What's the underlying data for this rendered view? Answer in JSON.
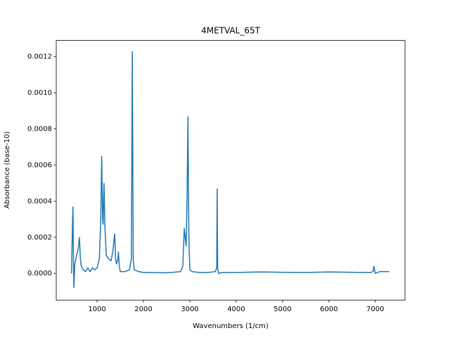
{
  "chart_data": {
    "type": "line",
    "title": "4METVAL_65T",
    "x_label": "Wavenumbers (1/cm)",
    "y_label": "Absorbance (base-10)",
    "x": [
      450,
      470,
      480,
      490,
      500,
      520,
      550,
      580,
      600,
      620,
      640,
      660,
      700,
      750,
      800,
      850,
      900,
      950,
      1000,
      1050,
      1080,
      1100,
      1120,
      1130,
      1150,
      1170,
      1200,
      1250,
      1300,
      1340,
      1380,
      1400,
      1420,
      1450,
      1460,
      1480,
      1500,
      1600,
      1700,
      1740,
      1760,
      1780,
      1800,
      1900,
      2000,
      2200,
      2400,
      2600,
      2800,
      2850,
      2880,
      2900,
      2920,
      2940,
      2960,
      2980,
      3000,
      3050,
      3200,
      3400,
      3550,
      3580,
      3590,
      3600,
      3620,
      3700,
      4000,
      4500,
      5000,
      5500,
      6000,
      6500,
      6900,
      6950,
      6970,
      6990,
      7000,
      7100,
      7200,
      7300
    ],
    "series": [
      {
        "name": "4METVAL_65T",
        "color": "#1f77b4",
        "values": [
          0.0,
          0.00028,
          0.00037,
          0.0001,
          -8e-05,
          5e-05,
          9e-05,
          0.00012,
          0.00015,
          0.0002,
          8e-05,
          4e-05,
          2e-05,
          1e-05,
          3e-05,
          1e-05,
          3e-05,
          2e-05,
          3e-05,
          8e-05,
          0.0003,
          0.00065,
          0.0003,
          0.00027,
          0.0005,
          0.00025,
          0.0001,
          8e-05,
          7e-05,
          0.00012,
          0.00022,
          8e-05,
          5e-05,
          8e-05,
          0.00012,
          4e-05,
          1e-05,
          1e-05,
          2e-05,
          8e-05,
          0.00123,
          8e-05,
          2e-05,
          1e-05,
          5e-06,
          5e-06,
          3e-06,
          5e-06,
          1e-05,
          4e-05,
          0.00025,
          0.0002,
          0.00015,
          0.0004,
          0.00087,
          0.0002,
          2e-05,
          1e-05,
          5e-06,
          5e-06,
          1e-05,
          3e-05,
          0.00047,
          3e-05,
          0.0,
          5e-06,
          5e-06,
          8e-06,
          6e-06,
          5e-06,
          8e-06,
          6e-06,
          5e-06,
          1e-05,
          4e-05,
          1e-05,
          0.0,
          1e-05,
          1e-05,
          1e-05
        ]
      }
    ],
    "xlim": [
      120,
      7640
    ],
    "ylim": [
      -0.000148,
      0.00129
    ],
    "xticks": [
      1000,
      2000,
      3000,
      4000,
      5000,
      6000,
      7000
    ],
    "yticks": [
      {
        "value": 0,
        "label": "0.0000"
      },
      {
        "value": 0.0002,
        "label": "0.0002"
      },
      {
        "value": 0.0004,
        "label": "0.0004"
      },
      {
        "value": 0.0006,
        "label": "0.0006"
      },
      {
        "value": 0.0008,
        "label": "0.0008"
      },
      {
        "value": 0.001,
        "label": "0.0010"
      },
      {
        "value": 0.0012,
        "label": "0.0012"
      }
    ],
    "grid": false
  }
}
